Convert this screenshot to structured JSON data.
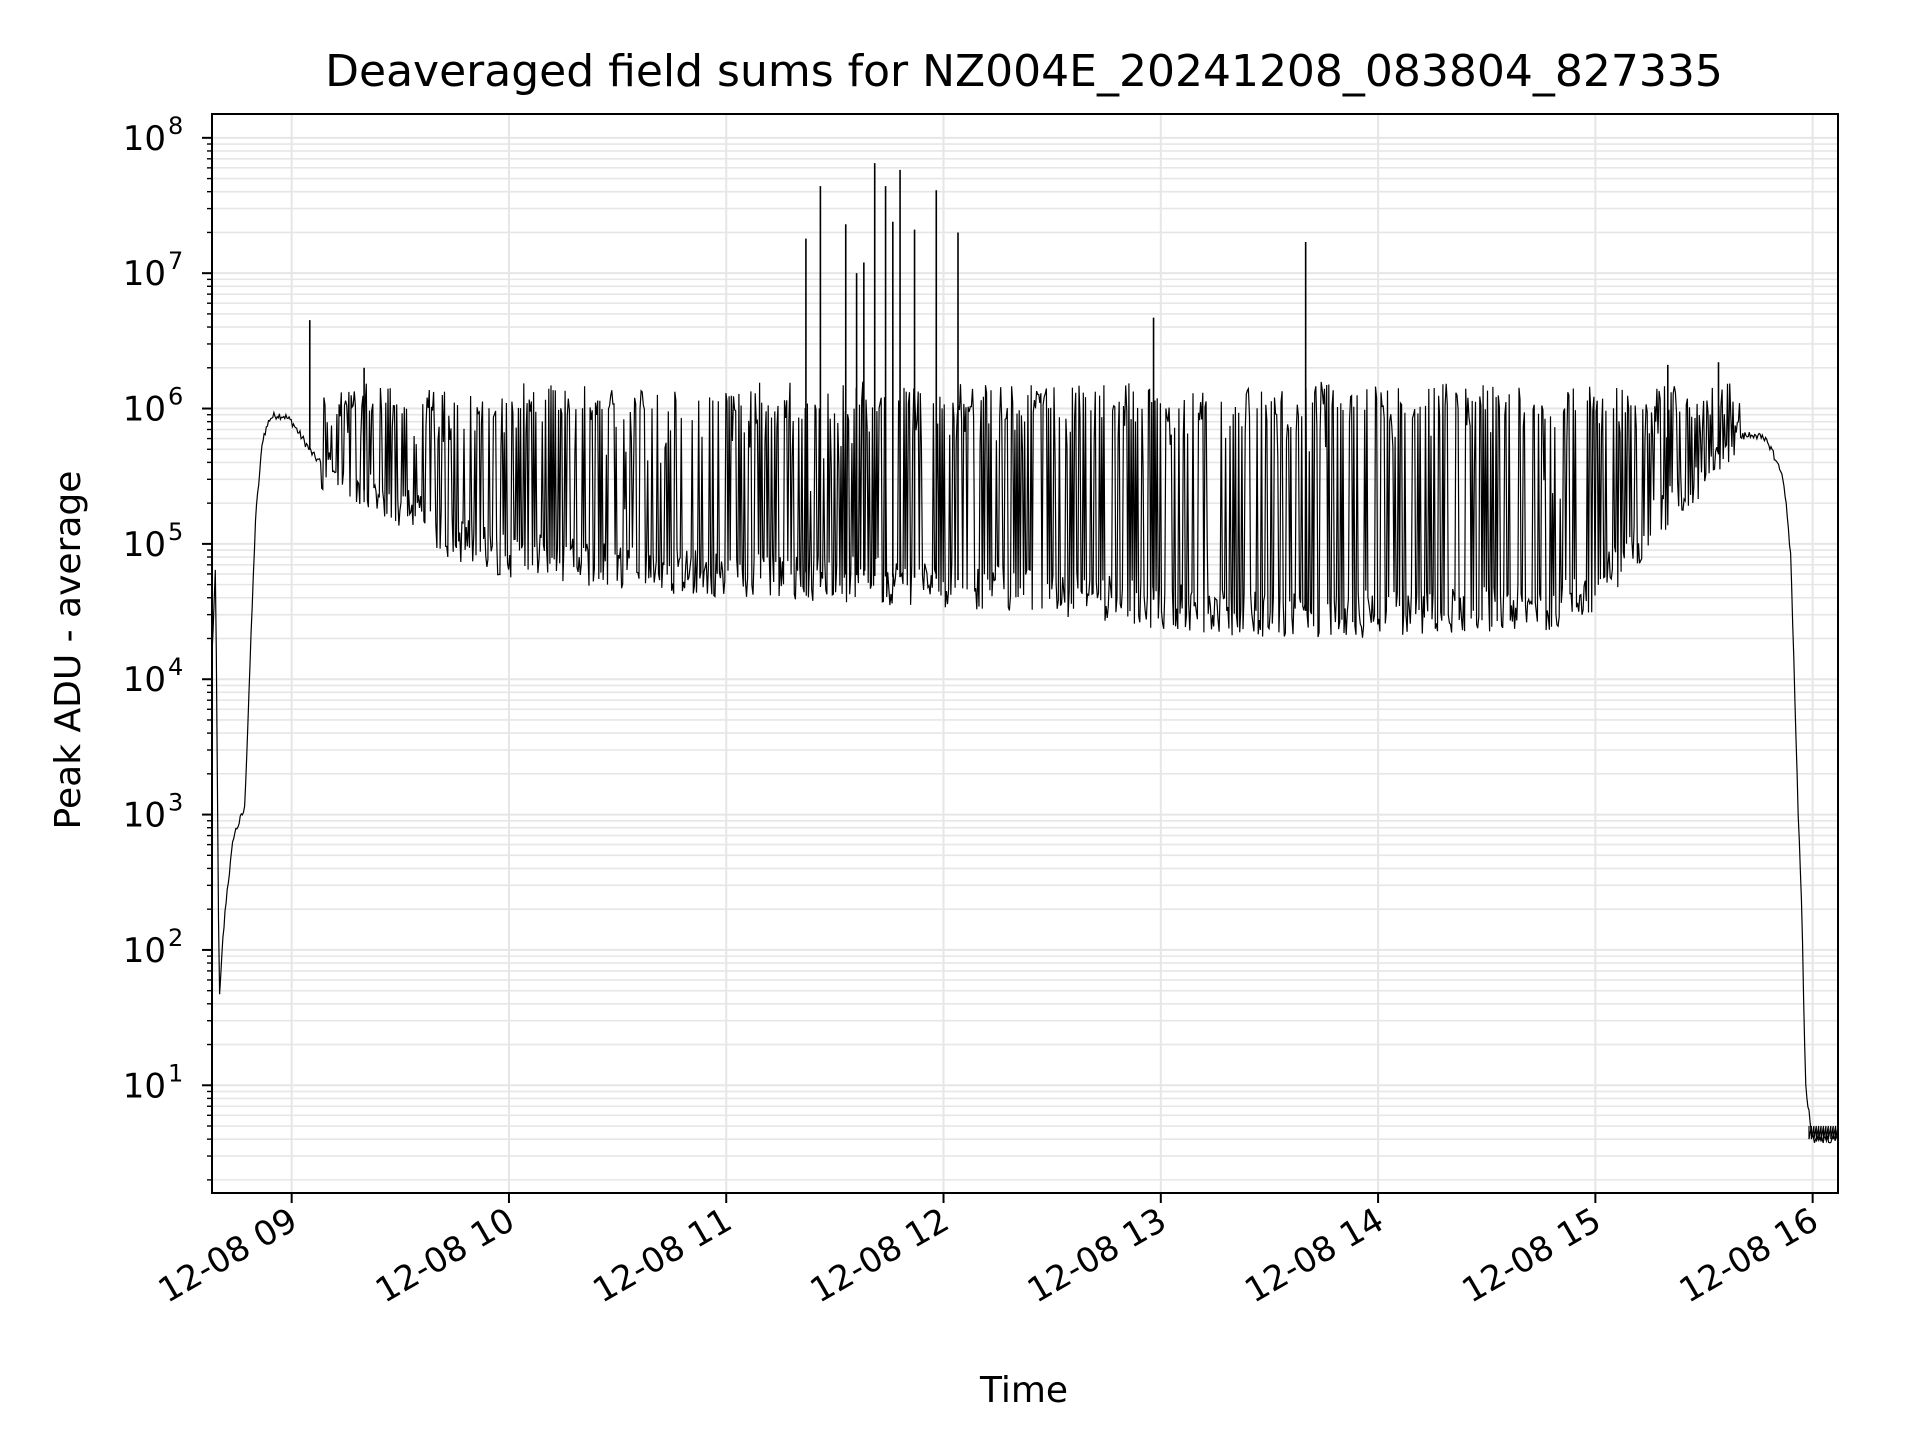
{
  "chart_data": {
    "type": "line",
    "title": "Deaveraged field sums for NZ004E_20241208_083804_827335",
    "xlabel": "Time",
    "ylabel": "Peak ADU - average",
    "yscale": "log",
    "grid": true,
    "line_color": "#000000",
    "grid_color": "#e6e6e6",
    "xlim": [
      "2024-12-08 08:38",
      "2024-12-08 16:07"
    ],
    "ylim": [
      1.6,
      150000000
    ],
    "xticks": [
      {
        "value": "2024-12-08 09:00",
        "label": "12-08 09"
      },
      {
        "value": "2024-12-08 10:00",
        "label": "12-08 10"
      },
      {
        "value": "2024-12-08 11:00",
        "label": "12-08 11"
      },
      {
        "value": "2024-12-08 12:00",
        "label": "12-08 12"
      },
      {
        "value": "2024-12-08 13:00",
        "label": "12-08 13"
      },
      {
        "value": "2024-12-08 14:00",
        "label": "12-08 14"
      },
      {
        "value": "2024-12-08 15:00",
        "label": "12-08 15"
      },
      {
        "value": "2024-12-08 16:00",
        "label": "12-08 16"
      }
    ],
    "yticks": [
      {
        "value": 10,
        "base": "10",
        "exp": "1"
      },
      {
        "value": 100,
        "base": "10",
        "exp": "2"
      },
      {
        "value": 1000,
        "base": "10",
        "exp": "3"
      },
      {
        "value": 10000,
        "base": "10",
        "exp": "4"
      },
      {
        "value": 100000,
        "base": "10",
        "exp": "5"
      },
      {
        "value": 1000000,
        "base": "10",
        "exp": "6"
      },
      {
        "value": 10000000,
        "base": "10",
        "exp": "7"
      },
      {
        "value": 100000000,
        "base": "10",
        "exp": "8"
      }
    ],
    "series": [
      {
        "x": [
          "2024-12-08 08:38",
          "2024-12-08 08:39",
          "2024-12-08 08:40",
          "2024-12-08 08:41",
          "2024-12-08 08:42",
          "2024-12-08 08:44",
          "2024-12-08 08:47",
          "2024-12-08 08:50",
          "2024-12-08 08:52",
          "2024-12-08 08:54",
          "2024-12-08 08:56",
          "2024-12-08 08:58",
          "2024-12-08 09:00",
          "2024-12-08 09:03",
          "2024-12-08 09:06",
          "2024-12-08 09:10",
          "2024-12-08 09:15",
          "2024-12-08 09:20",
          "2024-12-08 09:30",
          "2024-12-08 09:45",
          "2024-12-08 10:00",
          "2024-12-08 10:20",
          "2024-12-08 10:40",
          "2024-12-08 11:00",
          "2024-12-08 11:20",
          "2024-12-08 11:40",
          "2024-12-08 12:00",
          "2024-12-08 12:20",
          "2024-12-08 12:40",
          "2024-12-08 13:00",
          "2024-12-08 13:20",
          "2024-12-08 13:40",
          "2024-12-08 14:00",
          "2024-12-08 14:20",
          "2024-12-08 14:40",
          "2024-12-08 14:50",
          "2024-12-08 15:00",
          "2024-12-08 15:10",
          "2024-12-08 15:20",
          "2024-12-08 15:30",
          "2024-12-08 15:38",
          "2024-12-08 15:44",
          "2024-12-08 15:48",
          "2024-12-08 15:52",
          "2024-12-08 15:54",
          "2024-12-08 15:56",
          "2024-12-08 15:57",
          "2024-12-08 15:58",
          "2024-12-08 16:00",
          "2024-12-08 16:07"
        ],
        "y": [
          15000,
          70000,
          40,
          120,
          250,
          700,
          1100,
          150000,
          600000,
          850000,
          900000,
          880000,
          800000,
          600000,
          450000,
          350000,
          280000,
          250000,
          200000,
          120000,
          90000,
          80000,
          70000,
          65000,
          62000,
          58000,
          55000,
          50000,
          45000,
          38000,
          34000,
          32000,
          33000,
          35000,
          36000,
          38000,
          50000,
          100000,
          200000,
          350000,
          600000,
          650000,
          550000,
          300000,
          80000,
          1000,
          200,
          10,
          4,
          4
        ]
      }
    ],
    "spikes": [
      {
        "x": "2024-12-08 09:05",
        "y": 4500000
      },
      {
        "x": "2024-12-08 09:20",
        "y": 2000000
      },
      {
        "x": "2024-12-08 11:22",
        "y": 18000000
      },
      {
        "x": "2024-12-08 11:26",
        "y": 44000000
      },
      {
        "x": "2024-12-08 11:33",
        "y": 23000000
      },
      {
        "x": "2024-12-08 11:36",
        "y": 10000000
      },
      {
        "x": "2024-12-08 11:38",
        "y": 12000000
      },
      {
        "x": "2024-12-08 11:41",
        "y": 65000000
      },
      {
        "x": "2024-12-08 11:44",
        "y": 44000000
      },
      {
        "x": "2024-12-08 11:46",
        "y": 24000000
      },
      {
        "x": "2024-12-08 11:48",
        "y": 58000000
      },
      {
        "x": "2024-12-08 11:52",
        "y": 21000000
      },
      {
        "x": "2024-12-08 11:58",
        "y": 41000000
      },
      {
        "x": "2024-12-08 12:04",
        "y": 20000000
      },
      {
        "x": "2024-12-08 12:58",
        "y": 4700000
      },
      {
        "x": "2024-12-08 13:40",
        "y": 17000000
      },
      {
        "x": "2024-12-08 15:20",
        "y": 2100000
      },
      {
        "x": "2024-12-08 15:34",
        "y": 2200000
      }
    ]
  }
}
